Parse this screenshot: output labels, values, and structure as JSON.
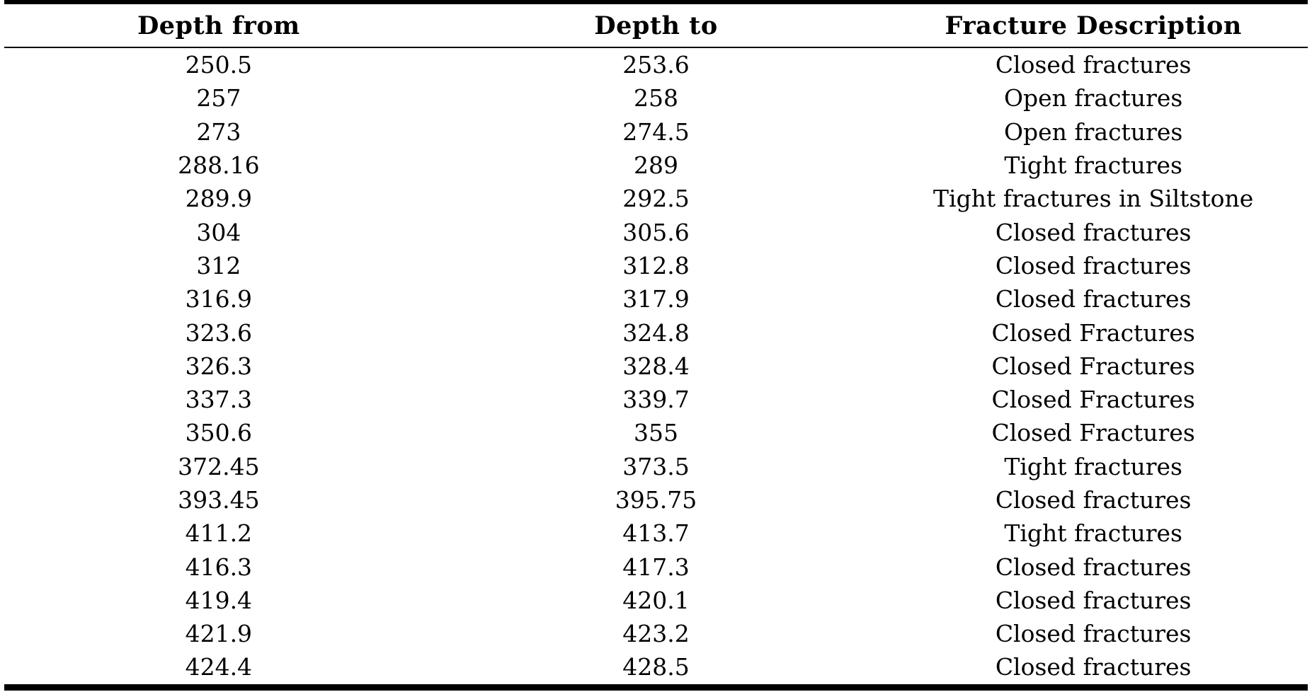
{
  "table": {
    "columns": [
      "Depth from",
      "Depth to",
      "Fracture Description"
    ],
    "rows": [
      [
        "250.5",
        "253.6",
        "Closed fractures"
      ],
      [
        "257",
        "258",
        "Open fractures"
      ],
      [
        "273",
        "274.5",
        "Open fractures"
      ],
      [
        "288.16",
        "289",
        "Tight fractures"
      ],
      [
        "289.9",
        "292.5",
        "Tight fractures in Siltstone"
      ],
      [
        "304",
        "305.6",
        "Closed fractures"
      ],
      [
        "312",
        "312.8",
        "Closed fractures"
      ],
      [
        "316.9",
        "317.9",
        "Closed fractures"
      ],
      [
        "323.6",
        "324.8",
        "Closed Fractures"
      ],
      [
        "326.3",
        "328.4",
        "Closed Fractures"
      ],
      [
        "337.3",
        "339.7",
        "Closed Fractures"
      ],
      [
        "350.6",
        "355",
        "Closed Fractures"
      ],
      [
        "372.45",
        "373.5",
        "Tight fractures"
      ],
      [
        "393.45",
        "395.75",
        "Closed fractures"
      ],
      [
        "411.2",
        "413.7",
        "Tight fractures"
      ],
      [
        "416.3",
        "417.3",
        "Closed fractures"
      ],
      [
        "419.4",
        "420.1",
        "Closed fractures"
      ],
      [
        "421.9",
        "423.2",
        "Closed fractures"
      ],
      [
        "424.4",
        "428.5",
        "Closed fractures"
      ]
    ],
    "colors": {
      "text": "#000000",
      "rule": "#000000",
      "background": "#ffffff"
    }
  }
}
